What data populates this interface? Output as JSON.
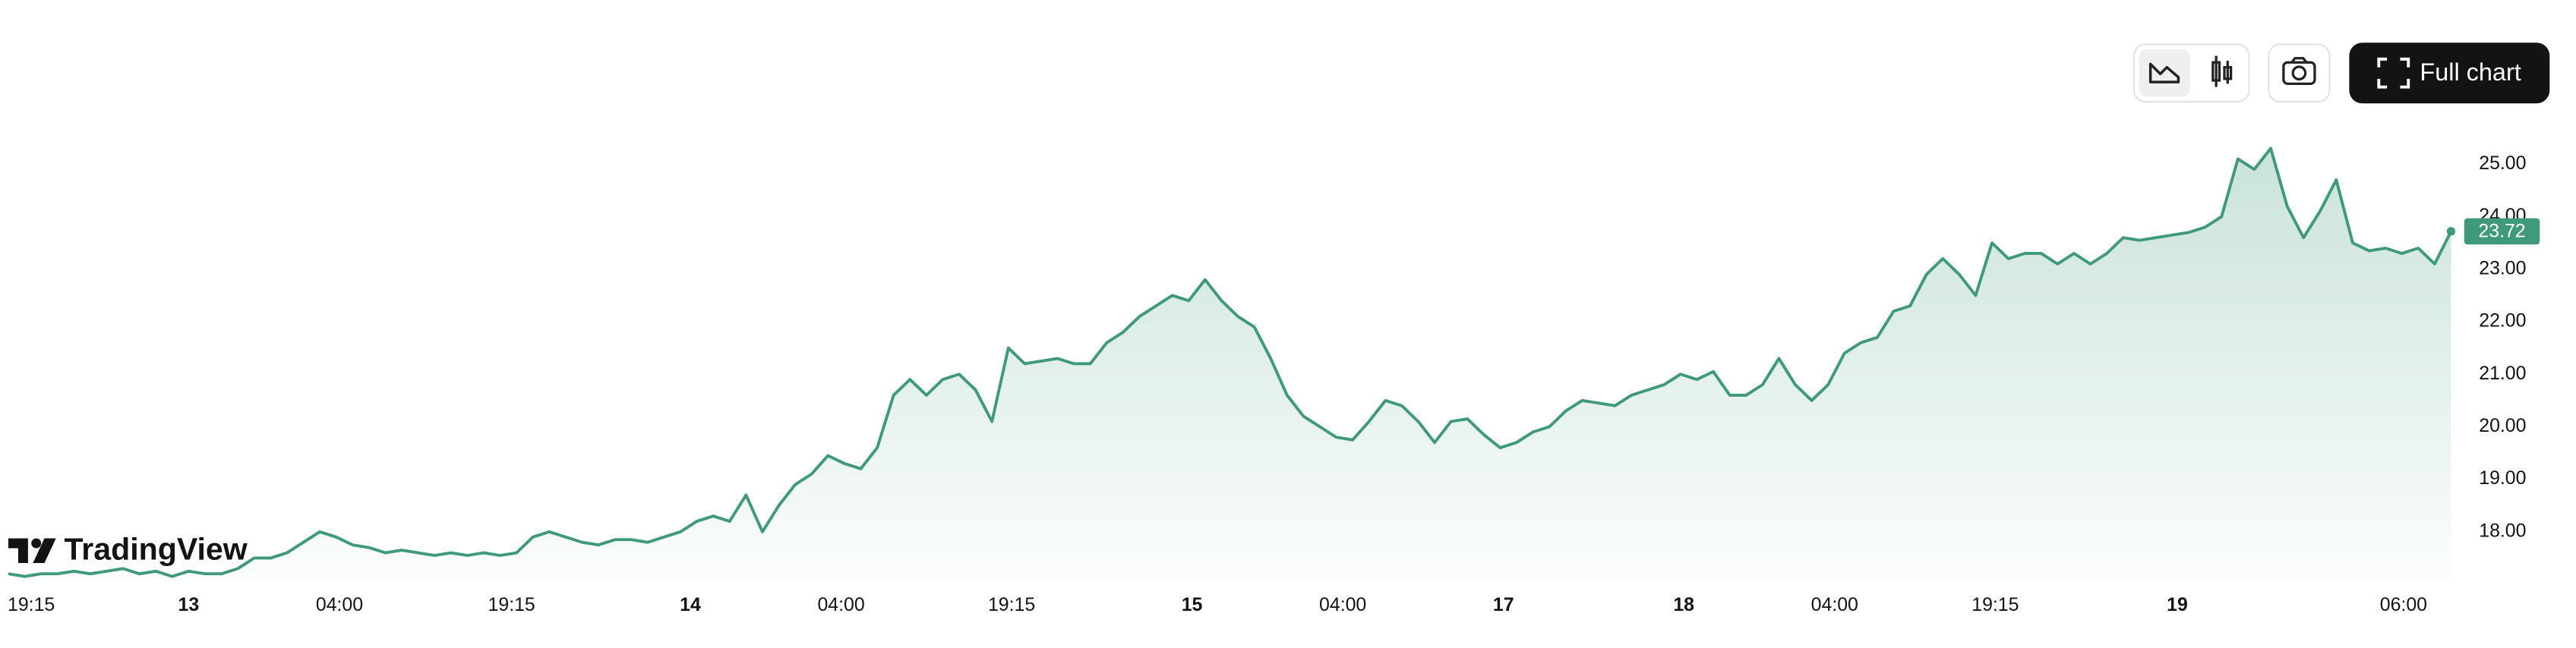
{
  "chart_data": {
    "type": "area",
    "logo": "TradingView",
    "button_label": "Full chart",
    "color": "#3f9a79",
    "values": [
      17.2,
      17.15,
      17.2,
      17.2,
      17.25,
      17.2,
      17.25,
      17.3,
      17.2,
      17.25,
      17.15,
      17.25,
      17.2,
      17.2,
      17.3,
      17.5,
      17.5,
      17.6,
      17.8,
      18.0,
      17.9,
      17.75,
      17.7,
      17.6,
      17.65,
      17.6,
      17.55,
      17.6,
      17.55,
      17.6,
      17.55,
      17.6,
      17.9,
      18.0,
      17.9,
      17.8,
      17.75,
      17.85,
      17.85,
      17.8,
      17.9,
      18.0,
      18.2,
      18.3,
      18.2,
      18.7,
      18.0,
      18.5,
      18.9,
      19.1,
      19.45,
      19.3,
      19.2,
      19.6,
      20.6,
      20.9,
      20.6,
      20.9,
      21.0,
      20.7,
      20.1,
      21.5,
      21.2,
      21.25,
      21.3,
      21.2,
      21.2,
      21.6,
      21.8,
      22.1,
      22.3,
      22.5,
      22.4,
      22.8,
      22.4,
      22.1,
      21.9,
      21.3,
      20.6,
      20.2,
      20.0,
      19.8,
      19.75,
      20.1,
      20.5,
      20.4,
      20.1,
      19.7,
      20.1,
      20.15,
      19.85,
      19.6,
      19.7,
      19.9,
      20.0,
      20.3,
      20.5,
      20.45,
      20.4,
      20.6,
      20.7,
      20.8,
      21.0,
      20.9,
      21.05,
      20.6,
      20.6,
      20.8,
      21.3,
      20.8,
      20.5,
      20.8,
      21.4,
      21.6,
      21.7,
      22.2,
      22.3,
      22.9,
      23.2,
      22.9,
      22.5,
      23.5,
      23.2,
      23.3,
      23.3,
      23.1,
      23.3,
      23.1,
      23.3,
      23.6,
      23.55,
      23.6,
      23.65,
      23.7,
      23.8,
      24.0,
      25.1,
      24.9,
      25.3,
      24.2,
      23.6,
      24.1,
      24.7,
      23.5,
      23.35,
      23.4,
      23.3,
      23.4,
      23.1,
      23.72
    ],
    "last_label": "23.72",
    "xlim": [
      0,
      149
    ],
    "xticks": [
      {
        "value": 1.4,
        "label": "19:15"
      },
      {
        "value": 11.0,
        "label": "13"
      },
      {
        "value": 20.2,
        "label": "04:00"
      },
      {
        "value": 30.7,
        "label": "19:15"
      },
      {
        "value": 41.6,
        "label": "14"
      },
      {
        "value": 50.8,
        "label": "04:00"
      },
      {
        "value": 61.2,
        "label": "19:15"
      },
      {
        "value": 72.2,
        "label": "15"
      },
      {
        "value": 81.4,
        "label": "04:00"
      },
      {
        "value": 91.2,
        "label": "17"
      },
      {
        "value": 102.2,
        "label": "18"
      },
      {
        "value": 111.4,
        "label": "04:00"
      },
      {
        "value": 121.2,
        "label": "19:15"
      },
      {
        "value": 132.3,
        "label": "19"
      },
      {
        "value": 146.1,
        "label": "06:00"
      }
    ],
    "ylim": [
      17.1,
      25.9
    ],
    "yticks": [
      {
        "value": 18,
        "label": "18.00"
      },
      {
        "value": 19,
        "label": "19.00"
      },
      {
        "value": 20,
        "label": "20.00"
      },
      {
        "value": 21,
        "label": "21.00"
      },
      {
        "value": 22,
        "label": "22.00"
      },
      {
        "value": 23,
        "label": "23.00"
      },
      {
        "value": 24,
        "label": "24.00"
      },
      {
        "value": 25,
        "label": "25.00"
      }
    ],
    "grid": false
  }
}
